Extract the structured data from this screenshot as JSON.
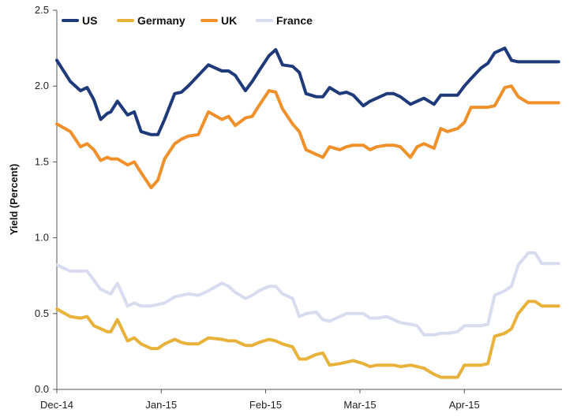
{
  "chart_data": {
    "type": "line",
    "ylabel": "Yield (Percent)",
    "ylim": [
      0,
      2.5
    ],
    "yticks": [
      "0.0",
      "0.5",
      "1.0",
      "1.5",
      "2.0",
      "2.5"
    ],
    "x_start": "2014-12-01",
    "x_end": "2015-04-30",
    "xticks": [
      {
        "label": "Dec-14",
        "date": "2014-12-01"
      },
      {
        "label": "Jan-15",
        "date": "2015-01-01"
      },
      {
        "label": "Feb-15",
        "date": "2015-02-01"
      },
      {
        "label": "Mar-15",
        "date": "2015-03-01"
      },
      {
        "label": "Apr-15",
        "date": "2015-04-01"
      }
    ],
    "grid": false,
    "legend_position": "top-left",
    "x": [
      "2014-12-01",
      "2014-12-05",
      "2014-12-08",
      "2014-12-10",
      "2014-12-12",
      "2014-12-14",
      "2014-12-16",
      "2014-12-17",
      "2014-12-19",
      "2014-12-22",
      "2014-12-24",
      "2014-12-26",
      "2014-12-29",
      "2014-12-31",
      "2015-01-02",
      "2015-01-05",
      "2015-01-07",
      "2015-01-09",
      "2015-01-12",
      "2015-01-15",
      "2015-01-19",
      "2015-01-21",
      "2015-01-23",
      "2015-01-26",
      "2015-01-28",
      "2015-01-30",
      "2015-02-02",
      "2015-02-04",
      "2015-02-06",
      "2015-02-09",
      "2015-02-11",
      "2015-02-13",
      "2015-02-16",
      "2015-02-18",
      "2015-02-20",
      "2015-02-23",
      "2015-02-25",
      "2015-02-27",
      "2015-03-02",
      "2015-03-04",
      "2015-03-06",
      "2015-03-09",
      "2015-03-11",
      "2015-03-13",
      "2015-03-16",
      "2015-03-18",
      "2015-03-20",
      "2015-03-23",
      "2015-03-25",
      "2015-03-27",
      "2015-03-30",
      "2015-04-01",
      "2015-04-03",
      "2015-04-06",
      "2015-04-08",
      "2015-04-10",
      "2015-04-13",
      "2015-04-15",
      "2015-04-17",
      "2015-04-20",
      "2015-04-22",
      "2015-04-24",
      "2015-04-27",
      "2015-04-29"
    ],
    "series": [
      {
        "name": "US",
        "color": "#1f3a7a",
        "values": [
          2.17,
          2.03,
          1.97,
          1.99,
          1.91,
          1.78,
          1.82,
          1.83,
          1.9,
          1.81,
          1.83,
          1.7,
          1.68,
          1.68,
          1.78,
          1.95,
          1.96,
          2.0,
          2.07,
          2.14,
          2.1,
          2.1,
          2.07,
          1.97,
          2.03,
          2.1,
          2.2,
          2.24,
          2.14,
          2.13,
          2.09,
          1.95,
          1.93,
          1.93,
          1.99,
          1.95,
          1.96,
          1.94,
          1.87,
          1.9,
          1.92,
          1.95,
          1.95,
          1.93,
          1.88,
          1.9,
          1.92,
          1.88,
          1.94,
          1.94,
          1.94,
          2.0,
          2.05,
          2.12,
          2.15,
          2.22,
          2.25,
          2.17,
          2.16,
          2.16,
          2.16,
          2.16,
          2.16,
          2.16
        ]
      },
      {
        "name": "Germany",
        "color": "#e8b23a",
        "values": [
          0.53,
          0.48,
          0.47,
          0.48,
          0.42,
          0.4,
          0.38,
          0.38,
          0.46,
          0.32,
          0.34,
          0.3,
          0.27,
          0.27,
          0.3,
          0.33,
          0.31,
          0.3,
          0.3,
          0.34,
          0.33,
          0.32,
          0.32,
          0.29,
          0.29,
          0.31,
          0.33,
          0.32,
          0.3,
          0.28,
          0.2,
          0.2,
          0.23,
          0.24,
          0.16,
          0.17,
          0.18,
          0.19,
          0.17,
          0.15,
          0.16,
          0.16,
          0.16,
          0.15,
          0.16,
          0.15,
          0.14,
          0.1,
          0.08,
          0.08,
          0.08,
          0.16,
          0.16,
          0.16,
          0.17,
          0.35,
          0.37,
          0.4,
          0.5,
          0.58,
          0.58,
          0.55,
          0.55,
          0.55
        ]
      },
      {
        "name": "UK",
        "color": "#f0902a",
        "values": [
          1.75,
          1.7,
          1.6,
          1.62,
          1.58,
          1.51,
          1.53,
          1.52,
          1.52,
          1.48,
          1.5,
          1.43,
          1.33,
          1.38,
          1.52,
          1.62,
          1.65,
          1.67,
          1.68,
          1.83,
          1.78,
          1.8,
          1.74,
          1.79,
          1.8,
          1.87,
          1.97,
          1.96,
          1.85,
          1.75,
          1.7,
          1.58,
          1.55,
          1.53,
          1.6,
          1.58,
          1.6,
          1.61,
          1.61,
          1.58,
          1.6,
          1.61,
          1.61,
          1.6,
          1.53,
          1.6,
          1.62,
          1.59,
          1.72,
          1.7,
          1.72,
          1.76,
          1.86,
          1.86,
          1.86,
          1.87,
          1.99,
          2.0,
          1.93,
          1.89,
          1.89,
          1.89,
          1.89,
          1.89
        ]
      },
      {
        "name": "France",
        "color": "#d9dbef",
        "values": [
          0.82,
          0.78,
          0.78,
          0.78,
          0.72,
          0.66,
          0.64,
          0.63,
          0.7,
          0.55,
          0.57,
          0.55,
          0.55,
          0.56,
          0.57,
          0.61,
          0.62,
          0.63,
          0.62,
          0.65,
          0.7,
          0.68,
          0.64,
          0.6,
          0.62,
          0.65,
          0.68,
          0.68,
          0.63,
          0.6,
          0.48,
          0.5,
          0.51,
          0.46,
          0.45,
          0.48,
          0.5,
          0.5,
          0.5,
          0.47,
          0.47,
          0.48,
          0.46,
          0.44,
          0.43,
          0.42,
          0.36,
          0.36,
          0.37,
          0.37,
          0.38,
          0.42,
          0.42,
          0.42,
          0.43,
          0.62,
          0.65,
          0.68,
          0.82,
          0.9,
          0.9,
          0.83,
          0.83,
          0.83
        ]
      }
    ]
  }
}
